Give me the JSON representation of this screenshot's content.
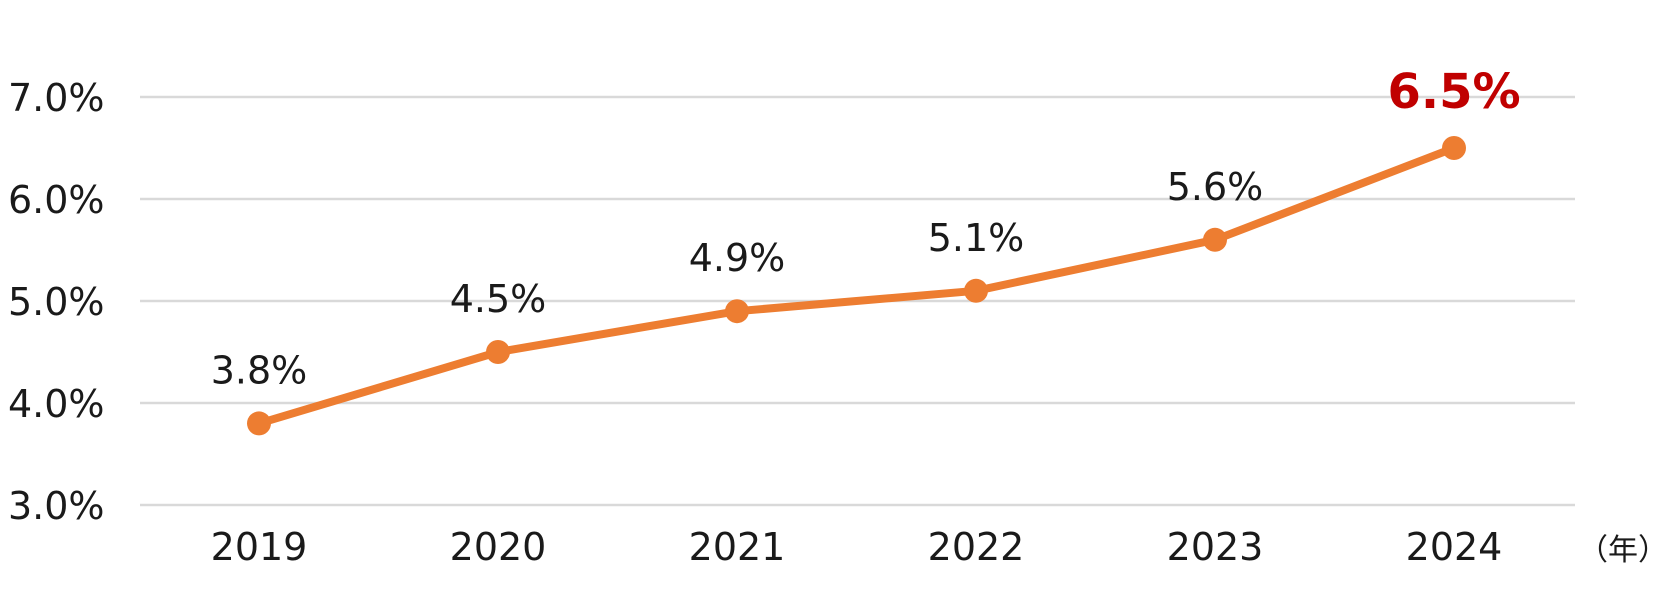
{
  "chart_data": {
    "type": "line",
    "categories": [
      "2019",
      "2020",
      "2021",
      "2022",
      "2023",
      "2024"
    ],
    "values": [
      3.8,
      4.5,
      4.9,
      5.1,
      5.6,
      6.5
    ],
    "data_labels": [
      "3.8%",
      "4.5%",
      "4.9%",
      "5.1%",
      "5.6%",
      "6.5%"
    ],
    "highlight_index": 5,
    "y_ticks": [
      7.0,
      6.0,
      5.0,
      4.0,
      3.0
    ],
    "y_tick_labels": [
      "7.0%",
      "6.0%",
      "5.0%",
      "4.0%",
      "3.0%"
    ],
    "ylim": [
      3.0,
      7.0
    ],
    "x_unit_label": "（年）",
    "title": "",
    "xlabel": "",
    "ylabel": "",
    "grid": true,
    "legend": "none",
    "colors": {
      "line": "#ED7D31",
      "highlight_label": "#C00000",
      "grid": "#D9D9D9",
      "text": "#1a1a1a"
    }
  }
}
